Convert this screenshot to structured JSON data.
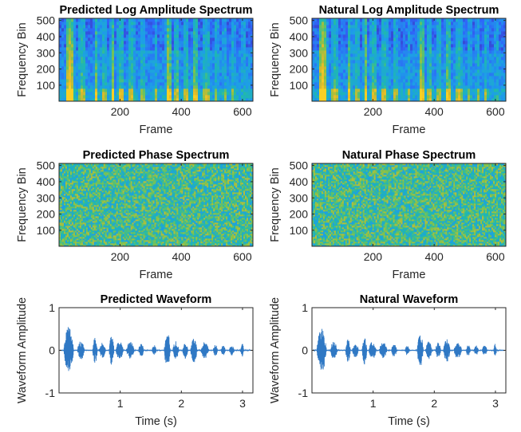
{
  "figure": {
    "layout": "3 rows x 2 columns"
  },
  "colors": {
    "colormap": [
      "#3e26a8",
      "#2f66f9",
      "#1d9ee8",
      "#1fb9ad",
      "#7bc350",
      "#dfb92a",
      "#f9d024"
    ],
    "waveform": "#2f78c4",
    "axis": "#262626"
  },
  "chart_data": [
    {
      "id": "pred-amp",
      "type": "heatmap",
      "title": "Predicted Log Amplitude Spectrum",
      "xlabel": "Frame",
      "ylabel": "Frequency Bin",
      "xlim": [
        1,
        634
      ],
      "ylim": [
        1,
        513
      ],
      "xticks": [
        200,
        400,
        600
      ],
      "yticks": [
        100,
        200,
        300,
        400,
        500
      ],
      "xticklabels": [
        "200",
        "400",
        "600"
      ],
      "yticklabels": [
        "100",
        "200",
        "300",
        "400",
        "500"
      ],
      "colormap": "parula",
      "description_of_content": "speech log-amplitude spectrogram with bright harmonic bands at low frequency bins"
    },
    {
      "id": "nat-amp",
      "type": "heatmap",
      "title": "Natural Log Amplitude Spectrum",
      "xlabel": "Frame",
      "ylabel": "Frequency Bin",
      "xlim": [
        1,
        634
      ],
      "ylim": [
        1,
        513
      ],
      "xticks": [
        200,
        400,
        600
      ],
      "yticks": [
        100,
        200,
        300,
        400,
        500
      ],
      "xticklabels": [
        "200",
        "400",
        "600"
      ],
      "yticklabels": [
        "100",
        "200",
        "300",
        "400",
        "500"
      ],
      "colormap": "parula"
    },
    {
      "id": "pred-phase",
      "type": "heatmap",
      "title": "Predicted Phase Spectrum",
      "xlabel": "Frame",
      "ylabel": "Frequency Bin",
      "xlim": [
        1,
        634
      ],
      "ylim": [
        1,
        513
      ],
      "xticks": [
        200,
        400,
        600
      ],
      "yticks": [
        100,
        200,
        300,
        400,
        500
      ],
      "xticklabels": [
        "200",
        "400",
        "600"
      ],
      "yticklabels": [
        "100",
        "200",
        "300",
        "400",
        "500"
      ],
      "colormap": "parula"
    },
    {
      "id": "nat-phase",
      "type": "heatmap",
      "title": "Natural Phase Spectrum",
      "xlabel": "Frame",
      "ylabel": "Frequency Bin",
      "xlim": [
        1,
        634
      ],
      "ylim": [
        1,
        513
      ],
      "xticks": [
        200,
        400,
        600
      ],
      "yticks": [
        100,
        200,
        300,
        400,
        500
      ],
      "xticklabels": [
        "200",
        "400",
        "600"
      ],
      "yticklabels": [
        "100",
        "200",
        "300",
        "400",
        "500"
      ],
      "colormap": "parula"
    },
    {
      "id": "pred-wave",
      "type": "line",
      "title": "Predicted Waveform",
      "xlabel": "Time (s)",
      "ylabel": "Waveform Amplitude",
      "xlim": [
        0,
        3.17
      ],
      "ylim": [
        -1,
        1
      ],
      "xticks": [
        1,
        2,
        3
      ],
      "yticks": [
        -1,
        0,
        1
      ],
      "xticklabels": [
        "1",
        "2",
        "3"
      ],
      "yticklabels": [
        "-1",
        "0",
        "1"
      ],
      "peak_amplitude_approx": 0.57
    },
    {
      "id": "nat-wave",
      "type": "line",
      "title": "Natural Waveform",
      "xlabel": "Time (s)",
      "ylabel": "Waveform Amplitude",
      "xlim": [
        0,
        3.17
      ],
      "ylim": [
        -1,
        1
      ],
      "xticks": [
        1,
        2,
        3
      ],
      "yticks": [
        -1,
        0,
        1
      ],
      "xticklabels": [
        "1",
        "2",
        "3"
      ],
      "yticklabels": [
        "-1",
        "0",
        "1"
      ],
      "peak_amplitude_approx": 0.52
    }
  ]
}
